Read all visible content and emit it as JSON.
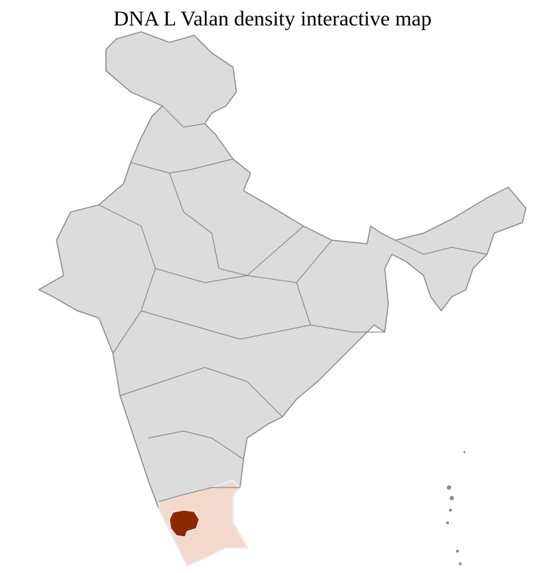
{
  "title": "DNA L Valan density interactive map",
  "colors": {
    "land": "#dcdcdc",
    "state_border": "#8a8a8a",
    "district_border": "#ffffff",
    "low_density": "#f2d9cc",
    "high_density": "#8b2a05"
  },
  "legend": null
}
